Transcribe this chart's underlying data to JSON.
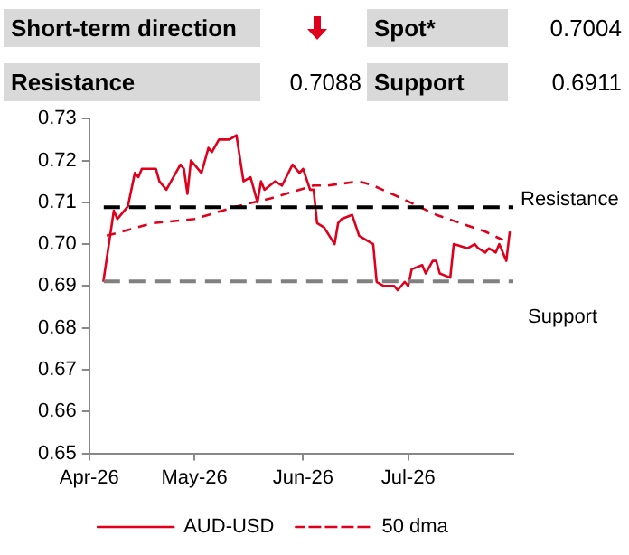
{
  "chart_data": {
    "type": "line",
    "annotations": [
      "Short-term direction",
      "Spot*",
      "0.7004",
      "Resistance",
      "0.7088",
      "Support",
      "0.6911"
    ],
    "xlim": [
      "2026-04-01",
      "2026-07-31"
    ],
    "xticks": [
      {
        "value": "2026-04-01",
        "label": "Apr-26"
      },
      {
        "value": "2026-05-01",
        "label": "May-26"
      },
      {
        "value": "2026-06-01",
        "label": "Jun-26"
      },
      {
        "value": "2026-07-01",
        "label": "Jul-26"
      }
    ],
    "ylim": [
      0.65,
      0.73
    ],
    "yticks": [
      {
        "value": 0.65,
        "label": "0.65"
      },
      {
        "value": 0.66,
        "label": "0.66"
      },
      {
        "value": 0.67,
        "label": "0.67"
      },
      {
        "value": 0.68,
        "label": "0.68"
      },
      {
        "value": 0.69,
        "label": "0.69"
      },
      {
        "value": 0.7,
        "label": "0.70"
      },
      {
        "value": 0.71,
        "label": "0.71"
      },
      {
        "value": 0.72,
        "label": "0.72"
      },
      {
        "value": 0.73,
        "label": "0.73"
      }
    ],
    "grid": false,
    "legend": "bottom",
    "marker": "none",
    "ref_lines": [
      {
        "axis": "y",
        "value": 0.7088,
        "label": "Resistance",
        "color": "#000000",
        "line_style": "dashed"
      },
      {
        "axis": "y",
        "value": 0.6911,
        "label": "Support",
        "color": "#808080",
        "line_style": "dashed"
      }
    ],
    "series": [
      {
        "name": "AUD-USD",
        "color": "#e0001b",
        "line_style": "solid",
        "x": [
          "2026-04-05",
          "2026-04-08",
          "2026-04-09",
          "2026-04-12",
          "2026-04-14",
          "2026-04-15",
          "2026-04-16",
          "2026-04-20",
          "2026-04-21",
          "2026-04-23",
          "2026-04-27",
          "2026-04-28",
          "2026-04-29",
          "2026-04-30",
          "2026-05-03",
          "2026-05-05",
          "2026-05-06",
          "2026-05-08",
          "2026-05-11",
          "2026-05-13",
          "2026-05-15",
          "2026-05-17",
          "2026-05-19",
          "2026-05-20",
          "2026-05-21",
          "2026-05-24",
          "2026-05-26",
          "2026-05-29",
          "2026-05-31",
          "2026-06-01",
          "2026-06-03",
          "2026-06-04",
          "2026-06-05",
          "2026-06-07",
          "2026-06-10",
          "2026-06-11",
          "2026-06-12",
          "2026-06-15",
          "2026-06-17",
          "2026-06-21",
          "2026-06-22",
          "2026-06-24",
          "2026-06-27",
          "2026-06-28",
          "2026-06-30",
          "2026-07-01",
          "2026-07-02",
          "2026-07-05",
          "2026-07-06",
          "2026-07-08",
          "2026-07-09",
          "2026-07-10",
          "2026-07-13",
          "2026-07-14",
          "2026-07-18",
          "2026-07-20",
          "2026-07-21",
          "2026-07-23",
          "2026-07-24",
          "2026-07-26",
          "2026-07-27",
          "2026-07-29",
          "2026-07-30"
        ],
        "values": [
          0.691,
          0.708,
          0.706,
          0.709,
          0.717,
          0.716,
          0.718,
          0.718,
          0.715,
          0.713,
          0.719,
          0.718,
          0.712,
          0.72,
          0.717,
          0.723,
          0.722,
          0.725,
          0.725,
          0.726,
          0.715,
          0.716,
          0.71,
          0.715,
          0.713,
          0.715,
          0.714,
          0.719,
          0.717,
          0.718,
          0.713,
          0.713,
          0.705,
          0.704,
          0.7,
          0.705,
          0.706,
          0.707,
          0.702,
          0.7,
          0.691,
          0.69,
          0.69,
          0.689,
          0.691,
          0.69,
          0.694,
          0.695,
          0.693,
          0.696,
          0.696,
          0.693,
          0.692,
          0.7,
          0.699,
          0.7,
          0.699,
          0.698,
          0.699,
          0.698,
          0.7,
          0.696,
          0.703
        ]
      },
      {
        "name": "50 dma",
        "color": "#e0001b",
        "line_style": "dashed",
        "x": [
          "2026-04-06",
          "2026-04-19",
          "2026-05-01",
          "2026-05-13",
          "2026-05-23",
          "2026-06-04",
          "2026-06-08",
          "2026-06-17",
          "2026-06-21",
          "2026-06-29",
          "2026-07-04",
          "2026-07-09",
          "2026-07-16",
          "2026-07-23",
          "2026-07-28"
        ],
        "values": [
          0.702,
          0.705,
          0.706,
          0.709,
          0.711,
          0.714,
          0.714,
          0.715,
          0.714,
          0.711,
          0.709,
          0.707,
          0.705,
          0.703,
          0.701
        ]
      }
    ]
  }
}
